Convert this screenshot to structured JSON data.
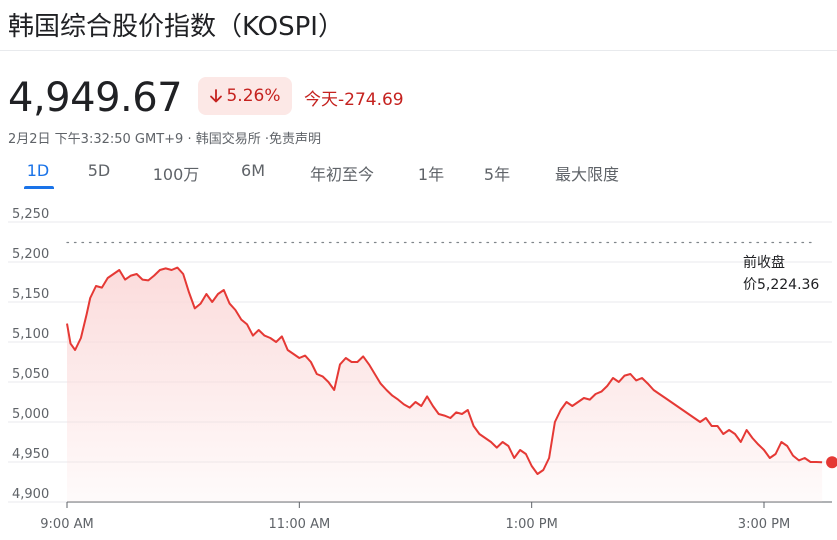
{
  "header": {
    "title": "韩国综合股价指数（KOSPI）"
  },
  "quote": {
    "price": "4,949.67",
    "change_percent": "5.26%",
    "change_arrow_icon": "arrow-down-icon",
    "today_label": "今天-274.69",
    "meta": "2月2日 下午3:32:50 GMT+9 · 韩国交易所 ·免责声明"
  },
  "tabs": [
    {
      "label": "1D",
      "active": true
    },
    {
      "label": "5D",
      "active": false
    },
    {
      "label": "100万",
      "active": false
    },
    {
      "label": "6M",
      "active": false
    },
    {
      "label": "年初至今",
      "active": false
    },
    {
      "label": "1年",
      "active": false
    },
    {
      "label": "5年",
      "active": false
    },
    {
      "label": "最大限度",
      "active": false
    }
  ],
  "colors": {
    "line": "#e53935",
    "fill": "#fbdada",
    "down": "#c5221f",
    "accent": "#1a73e8"
  },
  "chart_data": {
    "type": "area",
    "ylim": [
      4900,
      5250
    ],
    "xlim": [
      9.0,
      15.55
    ],
    "y_ticks": [
      {
        "value": 5250,
        "label": "5,250"
      },
      {
        "value": 5200,
        "label": "5,200"
      },
      {
        "value": 5150,
        "label": "5,150"
      },
      {
        "value": 5100,
        "label": "5,100"
      },
      {
        "value": 5050,
        "label": "5,050"
      },
      {
        "value": 5000,
        "label": "5,000"
      },
      {
        "value": 4950,
        "label": "4,950"
      },
      {
        "value": 4900,
        "label": "4,900"
      }
    ],
    "x_ticks": [
      {
        "value": 9,
        "label": "9:00 AM"
      },
      {
        "value": 11,
        "label": "11:00 AM"
      },
      {
        "value": 13,
        "label": "1:00 PM"
      },
      {
        "value": 15,
        "label": "3:00 PM"
      }
    ],
    "previous_close": 5224.36,
    "previous_close_label": [
      "前收盘",
      "价5,224.36"
    ],
    "last_value": 4949.67,
    "series": [
      {
        "x": [
          9.0,
          9.03,
          9.07,
          9.12,
          9.17,
          9.2,
          9.25,
          9.3,
          9.35,
          9.4,
          9.45,
          9.5,
          9.55,
          9.6,
          9.65,
          9.7,
          9.75,
          9.8,
          9.85,
          9.9,
          9.95,
          10.0,
          10.05,
          10.1,
          10.15,
          10.2,
          10.25,
          10.3,
          10.35,
          10.4,
          10.45,
          10.5,
          10.55,
          10.6,
          10.65,
          10.7,
          10.75,
          10.8,
          10.85,
          10.9,
          10.95,
          11.0,
          11.05,
          11.1,
          11.15,
          11.2,
          11.25,
          11.3,
          11.35,
          11.4,
          11.45,
          11.5,
          11.55,
          11.6,
          11.65,
          11.7,
          11.75,
          11.8,
          11.85,
          11.9,
          11.95,
          12.0,
          12.05,
          12.1,
          12.15,
          12.2,
          12.25,
          12.3,
          12.35,
          12.4,
          12.45,
          12.5,
          12.55,
          12.6,
          12.65,
          12.7,
          12.75,
          12.8,
          12.85,
          12.9,
          12.95,
          13.0,
          13.05,
          13.1,
          13.15,
          13.2,
          13.25,
          13.3,
          13.35,
          13.4,
          13.45,
          13.5,
          13.55,
          13.6,
          13.65,
          13.7,
          13.75,
          13.8,
          13.85,
          13.9,
          13.95,
          14.0,
          14.05,
          14.1,
          14.15,
          14.2,
          14.25,
          14.3,
          14.35,
          14.4,
          14.45,
          14.5,
          14.55,
          14.6,
          14.65,
          14.7,
          14.75,
          14.8,
          14.85,
          14.9,
          14.95,
          15.0,
          15.05,
          15.1,
          15.15,
          15.2,
          15.25,
          15.3,
          15.35,
          15.4,
          15.45,
          15.5
        ],
        "y": [
          5123,
          5098,
          5090,
          5105,
          5135,
          5155,
          5170,
          5168,
          5180,
          5185,
          5190,
          5178,
          5183,
          5185,
          5178,
          5177,
          5183,
          5190,
          5192,
          5190,
          5193,
          5185,
          5162,
          5142,
          5148,
          5160,
          5150,
          5160,
          5165,
          5148,
          5140,
          5128,
          5122,
          5108,
          5115,
          5108,
          5105,
          5100,
          5107,
          5090,
          5085,
          5080,
          5083,
          5075,
          5060,
          5057,
          5050,
          5040,
          5072,
          5080,
          5075,
          5075,
          5082,
          5072,
          5060,
          5048,
          5040,
          5033,
          5028,
          5022,
          5018,
          5025,
          5020,
          5032,
          5020,
          5010,
          5008,
          5005,
          5012,
          5010,
          5015,
          4995,
          4985,
          4980,
          4975,
          4968,
          4975,
          4970,
          4955,
          4965,
          4960,
          4945,
          4935,
          4940,
          4955,
          5000,
          5015,
          5025,
          5020,
          5025,
          5030,
          5028,
          5035,
          5038,
          5045,
          5055,
          5050,
          5058,
          5060,
          5052,
          5055,
          5048,
          5040,
          5035,
          5030,
          5025,
          5020,
          5015,
          5010,
          5005,
          5000,
          5005,
          4995,
          4995,
          4985,
          4990,
          4985,
          4975,
          4990,
          4980,
          4972,
          4965,
          4955,
          4960,
          4975,
          4970,
          4958,
          4952,
          4955,
          4950,
          4950,
          4949.67
        ]
      }
    ]
  }
}
